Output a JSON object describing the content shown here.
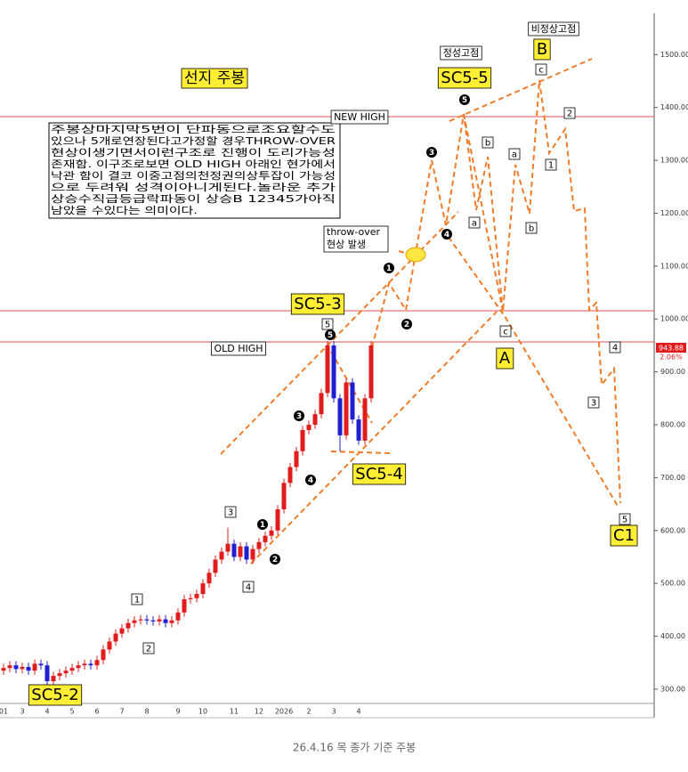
{
  "chart_data": {
    "type": "candlestick",
    "categories": [
      "01",
      null,
      null,
      "3",
      null,
      null,
      null,
      "4",
      null,
      null,
      null,
      "5",
      null,
      null,
      null,
      "6",
      null,
      null,
      null,
      "7",
      null,
      null,
      null,
      "8",
      null,
      null,
      null,
      null,
      "9",
      null,
      null,
      null,
      "10",
      null,
      null,
      null,
      null,
      "11",
      null,
      null,
      null,
      "12",
      null,
      null,
      null,
      "2026",
      null,
      null,
      null,
      "2",
      null,
      null,
      null,
      "3",
      null,
      null,
      null,
      "4",
      null,
      null
    ],
    "open": [
      335,
      340,
      345,
      338,
      342,
      335,
      348,
      345,
      315,
      325,
      330,
      335,
      340,
      345,
      348,
      345,
      355,
      375,
      390,
      405,
      415,
      425,
      430,
      432,
      430,
      428,
      432,
      425,
      430,
      445,
      470,
      472,
      480,
      500,
      520,
      545,
      560,
      575,
      550,
      570,
      545,
      565,
      578,
      590,
      600,
      640,
      690,
      720,
      750,
      790,
      800,
      820,
      860,
      950,
      850,
      780,
      880,
      810,
      770,
      850
    ],
    "high": [
      348,
      353,
      353,
      350,
      350,
      356,
      356,
      353,
      333,
      338,
      343,
      348,
      353,
      356,
      356,
      363,
      383,
      398,
      413,
      423,
      433,
      438,
      440,
      440,
      438,
      440,
      440,
      438,
      453,
      478,
      480,
      488,
      508,
      528,
      553,
      568,
      605,
      583,
      578,
      578,
      573,
      586,
      598,
      608,
      648,
      698,
      728,
      758,
      798,
      808,
      828,
      868,
      958,
      958,
      858,
      888,
      888,
      818,
      858,
      958
    ],
    "low": [
      327,
      332,
      330,
      330,
      327,
      327,
      337,
      307,
      307,
      317,
      322,
      327,
      332,
      337,
      337,
      337,
      347,
      367,
      382,
      397,
      407,
      417,
      422,
      422,
      420,
      420,
      417,
      417,
      422,
      437,
      462,
      464,
      472,
      492,
      512,
      537,
      552,
      542,
      542,
      537,
      537,
      557,
      570,
      582,
      592,
      632,
      682,
      712,
      742,
      782,
      792,
      812,
      852,
      842,
      750,
      772,
      802,
      762,
      762,
      842
    ],
    "close": [
      340,
      345,
      338,
      342,
      335,
      348,
      345,
      315,
      325,
      330,
      335,
      340,
      345,
      348,
      345,
      355,
      375,
      390,
      405,
      415,
      425,
      430,
      432,
      430,
      428,
      432,
      425,
      430,
      445,
      470,
      472,
      480,
      500,
      520,
      545,
      560,
      575,
      550,
      570,
      545,
      565,
      578,
      590,
      600,
      640,
      690,
      720,
      750,
      790,
      800,
      820,
      860,
      950,
      850,
      780,
      880,
      810,
      770,
      850,
      950
    ],
    "up_color": "#e21c1c",
    "down_color": "#2020d0",
    "ylim": [
      246,
      1578
    ],
    "yticks": [
      {
        "value": 300,
        "label": "300.00"
      },
      {
        "value": 400,
        "label": "400.00"
      },
      {
        "value": 500,
        "label": "500.00"
      },
      {
        "value": 600,
        "label": "600.00"
      },
      {
        "value": 700,
        "label": "700.00"
      },
      {
        "value": 800,
        "label": "800.00"
      },
      {
        "value": 900,
        "label": "900.00"
      },
      {
        "value": 1000,
        "label": "1000.00"
      },
      {
        "value": 1100,
        "label": "1100.00"
      },
      {
        "value": 1200,
        "label": "1200.00"
      },
      {
        "value": 1300,
        "label": "1300.00"
      },
      {
        "value": 1400,
        "label": "1400.00"
      },
      {
        "value": 1500,
        "label": "1500.00"
      }
    ],
    "price_tag": "943.88",
    "change_tag": "2.06%",
    "annotations": [
      "선지 주봉",
      "정성고점",
      "SC5-5",
      "비정상고점",
      "B",
      "NEW HIGH",
      "OLD HIGH",
      "SC5-3",
      "SC5-4",
      "SC5-2",
      "A",
      "C1"
    ],
    "throw_over": [
      "throw-over",
      "현상 발생"
    ],
    "wave_labels": [
      "5",
      "c",
      "2",
      "b",
      "a",
      "1",
      "a",
      "b",
      "c",
      "4",
      "3",
      "5",
      "3",
      "1",
      "2",
      "4"
    ],
    "circle_labels": [
      "5",
      "3",
      "4",
      "1",
      "2",
      "5",
      "3",
      "4",
      "1",
      "2"
    ],
    "note_lines": [
      "주봉상마지막5번이 단파동으로조요할수도",
      "있으나 5개로연장된다고가정할 경우THROW-OVER",
      "현상이생기면서이런구조로 진행이 도리가능성",
      "존재함. 이구조로보면 OLD HIGH  아래인 현가에서",
      "낙관 함이 결코 이중고점의천정권의상투잡이 가능성",
      "으로 두려워 성격이아니게된다.놀라운 추가",
      "상승수직급등급락파동이 상승B 12345가아직",
      "남았을 수있다는 의미이다."
    ]
  },
  "caption": "26.4.16 목 종가 기준 주봉"
}
